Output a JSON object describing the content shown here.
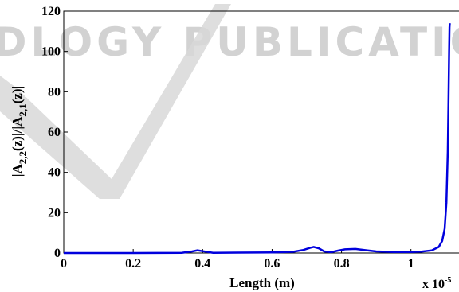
{
  "watermark": {
    "text": "DLOGY PUBLICATIONS"
  },
  "chart_data": {
    "type": "line",
    "xlabel": "Length (m)",
    "ylabel": "|A2,2(z)|/|A2,1(z)|",
    "x_multiplier": "x 10-5",
    "xlim": [
      0,
      1.12
    ],
    "ylim": [
      0,
      120
    ],
    "x_ticks": [
      "0",
      "0.2",
      "0.4",
      "0.6",
      "0.8",
      "1"
    ],
    "y_ticks": [
      "0",
      "20",
      "40",
      "60",
      "80",
      "100",
      "120"
    ],
    "grid": false,
    "series": [
      {
        "color": "#0000dd",
        "x": [
          0,
          0.2,
          0.34,
          0.37,
          0.385,
          0.4,
          0.43,
          0.5,
          0.6,
          0.66,
          0.69,
          0.71,
          0.72,
          0.735,
          0.75,
          0.77,
          0.79,
          0.81,
          0.84,
          0.87,
          0.9,
          0.95,
          1.0,
          1.03,
          1.06,
          1.08,
          1.09,
          1.097,
          1.102,
          1.106,
          1.108,
          1.11,
          1.111,
          1.112
        ],
        "y": [
          0,
          0,
          0.1,
          0.8,
          1.3,
          0.9,
          0.1,
          0.2,
          0.3,
          0.6,
          1.5,
          2.6,
          3.0,
          2.3,
          0.8,
          0.4,
          1.2,
          1.8,
          2.0,
          1.4,
          0.8,
          0.5,
          0.5,
          0.7,
          1.3,
          3,
          6,
          12,
          25,
          50,
          75,
          100,
          112,
          114
        ]
      }
    ]
  }
}
